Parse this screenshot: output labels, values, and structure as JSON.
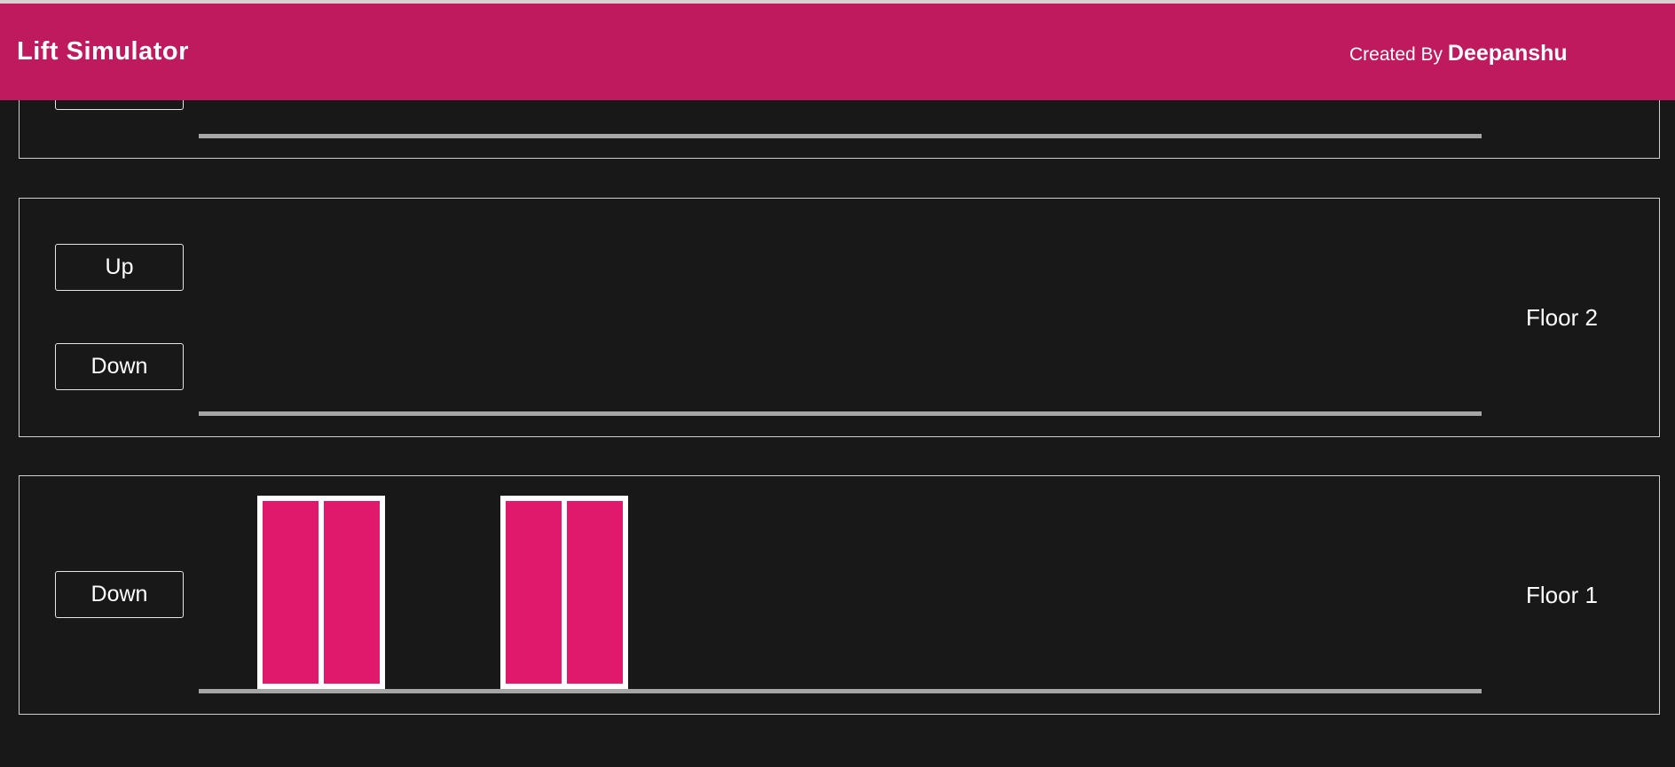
{
  "header": {
    "title": "Lift Simulator",
    "credit_prefix": "Created By",
    "credit_name": "Deepanshu"
  },
  "floors": [
    {
      "label": "",
      "buttons": [
        ""
      ]
    },
    {
      "label": "Floor 2",
      "buttons": [
        "Up",
        "Down"
      ]
    },
    {
      "label": "Floor 1",
      "buttons": [
        "Down"
      ]
    }
  ],
  "lifts": [
    {
      "floor": 1,
      "doors": "closed"
    },
    {
      "floor": 1,
      "doors": "closed"
    }
  ],
  "colors": {
    "header": "#be1a5d",
    "background": "#181818",
    "lift_door": "#e0196d",
    "lift_frame": "#ffffff",
    "rail": "#a6a6a6"
  }
}
